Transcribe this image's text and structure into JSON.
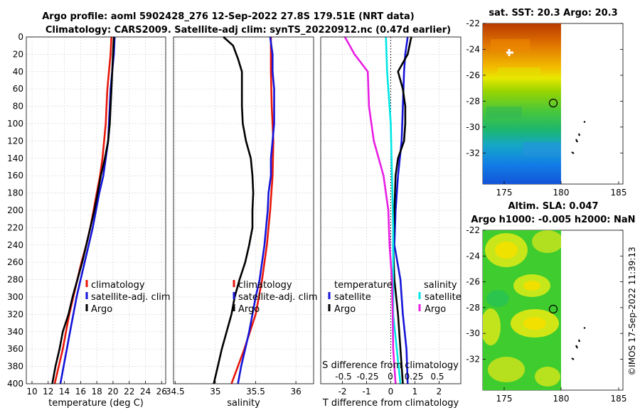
{
  "chart_data": {
    "type": "line",
    "title_line1": "Argo profile: aoml 5902428_276 12-Sep-2022 27.8S 179.51E (NRT data)",
    "title_line2": "Climatology: CARS2009. Satellite-adj clim: synTS_20220912.nc (0.47d earlier)",
    "depth_ticks": [
      "0",
      "20",
      "40",
      "60",
      "80",
      "100",
      "120",
      "140",
      "160",
      "180",
      "200",
      "220",
      "240",
      "260",
      "280",
      "300",
      "320",
      "340",
      "360",
      "380",
      "400"
    ],
    "ylim": [
      0,
      400
    ],
    "panels": [
      {
        "id": "temperature",
        "xlabel": "temperature (deg C)",
        "xlim": [
          9.3,
          26.5
        ],
        "xticks": [
          "10",
          "12",
          "14",
          "16",
          "18",
          "20",
          "22",
          "24",
          "26"
        ],
        "legend": [
          "climatology",
          "satellite-adj. clim",
          "Argo"
        ],
        "series": [
          {
            "name": "climatology",
            "color": "#e8170c",
            "points": [
              [
                19.8,
                0
              ],
              [
                19.7,
                20
              ],
              [
                19.5,
                40
              ],
              [
                19.3,
                60
              ],
              [
                19.2,
                80
              ],
              [
                19.1,
                100
              ],
              [
                18.9,
                120
              ],
              [
                18.7,
                140
              ],
              [
                18.4,
                160
              ],
              [
                18.0,
                180
              ],
              [
                17.6,
                200
              ],
              [
                17.2,
                220
              ],
              [
                16.7,
                240
              ],
              [
                16.1,
                260
              ],
              [
                15.6,
                280
              ],
              [
                15.1,
                300
              ],
              [
                14.6,
                320
              ],
              [
                14.2,
                340
              ],
              [
                13.8,
                360
              ],
              [
                13.3,
                380
              ],
              [
                12.8,
                400
              ]
            ]
          },
          {
            "name": "satellite-adj. clim",
            "color": "#1414d9",
            "points": [
              [
                20.2,
                0
              ],
              [
                20.1,
                20
              ],
              [
                19.9,
                40
              ],
              [
                19.7,
                60
              ],
              [
                19.6,
                80
              ],
              [
                19.5,
                100
              ],
              [
                19.4,
                120
              ],
              [
                19.1,
                140
              ],
              [
                18.8,
                160
              ],
              [
                18.3,
                180
              ],
              [
                17.9,
                200
              ],
              [
                17.5,
                220
              ],
              [
                17.0,
                240
              ],
              [
                16.5,
                260
              ],
              [
                16.0,
                280
              ],
              [
                15.5,
                300
              ],
              [
                15.1,
                320
              ],
              [
                14.7,
                340
              ],
              [
                14.3,
                360
              ],
              [
                13.9,
                380
              ],
              [
                13.5,
                400
              ]
            ]
          },
          {
            "name": "Argo",
            "color": "#000000",
            "points": [
              [
                20.1,
                0
              ],
              [
                20.0,
                20
              ],
              [
                19.9,
                40
              ],
              [
                19.8,
                60
              ],
              [
                19.7,
                80
              ],
              [
                19.6,
                100
              ],
              [
                19.4,
                120
              ],
              [
                19.0,
                140
              ],
              [
                18.5,
                160
              ],
              [
                18.1,
                180
              ],
              [
                17.7,
                200
              ],
              [
                17.2,
                220
              ],
              [
                16.7,
                240
              ],
              [
                16.2,
                260
              ],
              [
                15.6,
                280
              ],
              [
                15.0,
                300
              ],
              [
                14.5,
                320
              ],
              [
                13.8,
                340
              ],
              [
                13.4,
                360
              ],
              [
                12.9,
                380
              ],
              [
                12.5,
                400
              ]
            ]
          }
        ]
      },
      {
        "id": "salinity",
        "xlabel": "salinity",
        "xlim": [
          34.48,
          36.22
        ],
        "xticks": [
          "34.5",
          "35",
          "35.5",
          "36"
        ],
        "legend": [
          "climatology",
          "satellite-adj. clim",
          "Argo"
        ],
        "series": [
          {
            "name": "climatology",
            "color": "#e8170c",
            "points": [
              [
                35.69,
                0
              ],
              [
                35.69,
                40
              ],
              [
                35.7,
                80
              ],
              [
                35.72,
                120
              ],
              [
                35.71,
                160
              ],
              [
                35.68,
                200
              ],
              [
                35.64,
                240
              ],
              [
                35.58,
                280
              ],
              [
                35.5,
                320
              ],
              [
                35.36,
                360
              ],
              [
                35.2,
                400
              ]
            ]
          },
          {
            "name": "satellite-adj. clim",
            "color": "#1414d9",
            "points": [
              [
                35.68,
                0
              ],
              [
                35.71,
                20
              ],
              [
                35.71,
                40
              ],
              [
                35.73,
                60
              ],
              [
                35.73,
                80
              ],
              [
                35.73,
                100
              ],
              [
                35.71,
                120
              ],
              [
                35.69,
                140
              ],
              [
                35.69,
                160
              ],
              [
                35.66,
                180
              ],
              [
                35.65,
                200
              ],
              [
                35.63,
                220
              ],
              [
                35.61,
                240
              ],
              [
                35.58,
                260
              ],
              [
                35.55,
                280
              ],
              [
                35.5,
                300
              ],
              [
                35.46,
                320
              ],
              [
                35.42,
                340
              ],
              [
                35.37,
                360
              ],
              [
                35.32,
                380
              ],
              [
                35.28,
                400
              ]
            ]
          },
          {
            "name": "Argo",
            "color": "#000000",
            "points": [
              [
                35.1,
                0
              ],
              [
                35.22,
                10
              ],
              [
                35.28,
                25
              ],
              [
                35.33,
                40
              ],
              [
                35.33,
                60
              ],
              [
                35.33,
                80
              ],
              [
                35.34,
                100
              ],
              [
                35.38,
                120
              ],
              [
                35.44,
                140
              ],
              [
                35.46,
                160
              ],
              [
                35.47,
                180
              ],
              [
                35.46,
                200
              ],
              [
                35.46,
                220
              ],
              [
                35.42,
                240
              ],
              [
                35.37,
                260
              ],
              [
                35.3,
                280
              ],
              [
                35.24,
                300
              ],
              [
                35.2,
                320
              ],
              [
                35.14,
                340
              ],
              [
                35.08,
                360
              ],
              [
                35.03,
                380
              ],
              [
                34.98,
                400
              ]
            ]
          }
        ]
      },
      {
        "id": "difference",
        "xlabel": "T difference from climatology",
        "xlabel_top": "S difference from climatology",
        "xlim": [
          -2.9,
          2.9
        ],
        "xticks": [
          "-2",
          "-1",
          "0",
          "1",
          "2"
        ],
        "xticks_top": [
          "-0.5",
          "-0.25",
          "0",
          "0.25",
          "0.5"
        ],
        "zero_marker": 0,
        "legend_temperature_title": "temperature",
        "legend_salinity_title": "salinity",
        "legend": [
          "satellite",
          "Argo",
          "satellite",
          "Argo"
        ],
        "series": [
          {
            "name": "temperature satellite",
            "color": "#1414d9",
            "points": [
              [
                0.7,
                0
              ],
              [
                0.6,
                20
              ],
              [
                0.55,
                40
              ],
              [
                0.5,
                80
              ],
              [
                0.45,
                120
              ],
              [
                0.3,
                160
              ],
              [
                0.2,
                200
              ],
              [
                0.15,
                240
              ],
              [
                0.4,
                280
              ],
              [
                0.5,
                320
              ],
              [
                0.65,
                360
              ],
              [
                0.7,
                400
              ]
            ]
          },
          {
            "name": "temperature Argo",
            "color": "#000000",
            "points": [
              [
                0.85,
                0
              ],
              [
                0.7,
                20
              ],
              [
                0.3,
                40
              ],
              [
                0.5,
                60
              ],
              [
                0.6,
                80
              ],
              [
                0.6,
                100
              ],
              [
                0.55,
                120
              ],
              [
                0.3,
                140
              ],
              [
                0.2,
                160
              ],
              [
                0.15,
                200
              ],
              [
                0.1,
                240
              ],
              [
                0.15,
                280
              ],
              [
                0.3,
                320
              ],
              [
                0.4,
                360
              ],
              [
                0.45,
                380
              ],
              [
                0.5,
                400
              ]
            ]
          },
          {
            "name": "salinity satellite",
            "color": "#00e6e6",
            "points": [
              [
                -0.2,
                0
              ],
              [
                -0.15,
                40
              ],
              [
                0.0,
                100
              ],
              [
                0.05,
                160
              ],
              [
                0.1,
                220
              ],
              [
                0.1,
                280
              ],
              [
                0.1,
                320
              ],
              [
                0.25,
                360
              ],
              [
                0.4,
                400
              ]
            ]
          },
          {
            "name": "salinity Argo",
            "color": "#e81ee3",
            "points": [
              [
                -1.9,
                0
              ],
              [
                -1.5,
                20
              ],
              [
                -0.95,
                40
              ],
              [
                -0.9,
                80
              ],
              [
                -0.7,
                120
              ],
              [
                -0.3,
                160
              ],
              [
                -0.1,
                200
              ],
              [
                -0.05,
                240
              ],
              [
                0.05,
                280
              ],
              [
                0.08,
                320
              ],
              [
                0.1,
                360
              ],
              [
                0.2,
                400
              ]
            ]
          }
        ]
      }
    ]
  },
  "maps": [
    {
      "title": "sat. SST: 20.3 Argo: 20.3",
      "yticks": [
        "-22",
        "-24",
        "-26",
        "-28",
        "-30",
        "-32"
      ],
      "xticks": [
        "175",
        "180",
        "185"
      ]
    },
    {
      "title_line1": "Altim. SLA: 0.047",
      "title_line2": "Argo h1000: -0.005 h2000: NaN",
      "yticks": [
        "-22",
        "-24",
        "-26",
        "-28",
        "-30",
        "-32"
      ],
      "xticks": [
        "175",
        "180",
        "185"
      ]
    }
  ],
  "footer_stamp": "©IMOS 17-Sep-2022 11:39:13",
  "colors": {
    "grid": "#d7d7d7",
    "axis": "#000000"
  }
}
